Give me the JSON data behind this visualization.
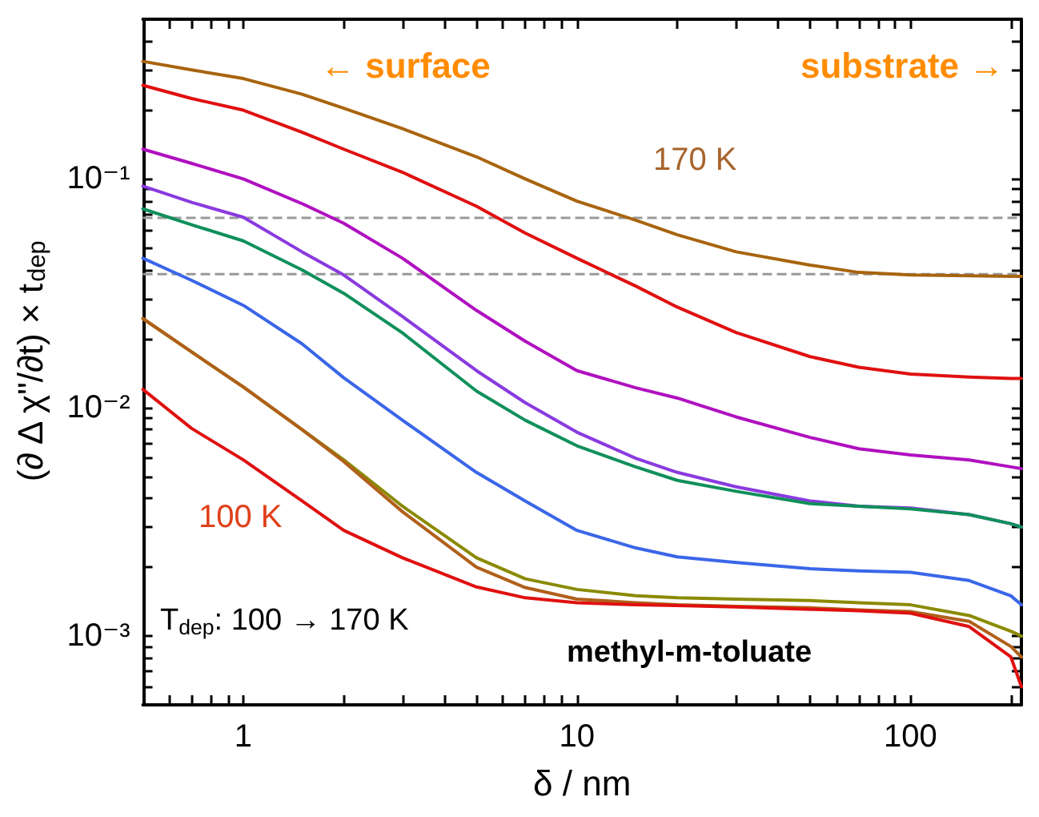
{
  "chart_data": {
    "type": "line",
    "xlabel": "δ / nm",
    "ylabel": "(∂ Δ χ\"/∂t) × t$_{dep}$",
    "log": "xy",
    "grid": false,
    "marker": "none",
    "line_style": "solid",
    "xlim": [
      0.5,
      215
    ],
    "ylim": [
      0.0005,
      0.5
    ],
    "xticks": [
      {
        "value": 0.5,
        "label": null
      },
      {
        "value": 0.6,
        "label": null
      },
      {
        "value": 0.7,
        "label": null
      },
      {
        "value": 0.8,
        "label": null
      },
      {
        "value": 0.9,
        "label": null
      },
      1,
      {
        "value": 2,
        "label": null
      },
      {
        "value": 3,
        "label": null
      },
      {
        "value": 4,
        "label": null
      },
      {
        "value": 5,
        "label": null
      },
      {
        "value": 6,
        "label": null
      },
      {
        "value": 7,
        "label": null
      },
      {
        "value": 8,
        "label": null
      },
      {
        "value": 9,
        "label": null
      },
      10,
      {
        "value": 20,
        "label": null
      },
      {
        "value": 30,
        "label": null
      },
      {
        "value": 40,
        "label": null
      },
      {
        "value": 50,
        "label": null
      },
      {
        "value": 60,
        "label": null
      },
      {
        "value": 70,
        "label": null
      },
      {
        "value": 80,
        "label": null
      },
      {
        "value": 90,
        "label": null
      },
      100,
      {
        "value": 200,
        "label": null
      }
    ],
    "yticks": [
      {
        "value": 0.0006,
        "label": null
      },
      {
        "value": 0.0007,
        "label": null
      },
      {
        "value": 0.0008,
        "label": null
      },
      {
        "value": 0.0009,
        "label": null
      },
      {
        "value": 0.001,
        "label": "10⁻³"
      },
      {
        "value": 0.002,
        "label": null
      },
      {
        "value": 0.003,
        "label": null
      },
      {
        "value": 0.004,
        "label": null
      },
      {
        "value": 0.005,
        "label": null
      },
      {
        "value": 0.006,
        "label": null
      },
      {
        "value": 0.007,
        "label": null
      },
      {
        "value": 0.008,
        "label": null
      },
      {
        "value": 0.009,
        "label": null
      },
      {
        "value": 0.01,
        "label": "10⁻²"
      },
      {
        "value": 0.02,
        "label": null
      },
      {
        "value": 0.03,
        "label": null
      },
      {
        "value": 0.04,
        "label": null
      },
      {
        "value": 0.05,
        "label": null
      },
      {
        "value": 0.06,
        "label": null
      },
      {
        "value": 0.07,
        "label": null
      },
      {
        "value": 0.08,
        "label": null
      },
      {
        "value": 0.09,
        "label": null
      },
      {
        "value": 0.1,
        "label": "10⁻¹"
      },
      {
        "value": 0.2,
        "label": null
      },
      {
        "value": 0.3,
        "label": null
      },
      {
        "value": 0.4,
        "label": null
      }
    ],
    "x": [
      0.5,
      0.7,
      1,
      1.5,
      2,
      3,
      5,
      7,
      10,
      15,
      20,
      30,
      50,
      70,
      100,
      150,
      200,
      215
    ],
    "series": [
      {
        "color": "#a8640f",
        "values": [
          0.327,
          0.3,
          0.275,
          0.235,
          0.204,
          0.166,
          0.125,
          0.1,
          0.08,
          0.066,
          0.057,
          0.048,
          0.042,
          0.039,
          0.038,
          0.0377,
          0.0375,
          0.0375
        ]
      },
      {
        "color": "#e01010",
        "values": [
          0.257,
          0.225,
          0.2,
          0.16,
          0.135,
          0.107,
          0.076,
          0.058,
          0.045,
          0.034,
          0.0275,
          0.0213,
          0.0167,
          0.015,
          0.014,
          0.0136,
          0.0134,
          0.0134
        ]
      },
      {
        "color": "#b010c0",
        "values": [
          0.135,
          0.117,
          0.1,
          0.078,
          0.064,
          0.045,
          0.0266,
          0.0195,
          0.0145,
          0.0122,
          0.011,
          0.0091,
          0.0074,
          0.0066,
          0.0062,
          0.0059,
          0.0055,
          0.0054
        ]
      },
      {
        "color": "#8a3ae0",
        "values": [
          0.093,
          0.079,
          0.068,
          0.048,
          0.038,
          0.025,
          0.0145,
          0.0105,
          0.0078,
          0.006,
          0.0052,
          0.0045,
          0.0039,
          0.0037,
          0.00363,
          0.0034,
          0.0031,
          0.003
        ]
      },
      {
        "color": "#10905a",
        "values": [
          0.074,
          0.063,
          0.0536,
          0.04,
          0.0316,
          0.0212,
          0.0118,
          0.0088,
          0.0068,
          0.0055,
          0.0048,
          0.0043,
          0.0038,
          0.0037,
          0.0036,
          0.0034,
          0.0031,
          0.003
        ]
      },
      {
        "color": "#3a66e8",
        "values": [
          0.045,
          0.036,
          0.028,
          0.019,
          0.0135,
          0.0088,
          0.0052,
          0.0039,
          0.0029,
          0.00243,
          0.00222,
          0.0021,
          0.00197,
          0.00193,
          0.0019,
          0.00175,
          0.0015,
          0.00137
        ]
      },
      {
        "color": "#8a8a00",
        "values": [
          0.0245,
          0.0175,
          0.0123,
          0.008,
          0.0059,
          0.0037,
          0.0022,
          0.00178,
          0.0016,
          0.0015,
          0.00147,
          0.00145,
          0.00143,
          0.0014,
          0.00137,
          0.00123,
          0.00105,
          0.001
        ]
      },
      {
        "color": "#b0601a",
        "values": [
          0.0245,
          0.0175,
          0.0123,
          0.008,
          0.0058,
          0.0035,
          0.002,
          0.00163,
          0.00145,
          0.0014,
          0.00137,
          0.00135,
          0.00133,
          0.0013,
          0.00128,
          0.00116,
          0.0009,
          0.00081
        ]
      },
      {
        "color": "#e01010",
        "values": [
          0.012,
          0.0081,
          0.0059,
          0.0039,
          0.0029,
          0.0022,
          0.00164,
          0.00147,
          0.0014,
          0.00137,
          0.00136,
          0.00134,
          0.00131,
          0.00129,
          0.00126,
          0.0011,
          0.00081,
          0.0006
        ]
      }
    ],
    "ref_lines": [
      {
        "axis": "y",
        "value": 0.0676,
        "color": "#999999",
        "line_style": "dashed"
      },
      {
        "axis": "y",
        "value": 0.0383,
        "color": "#999999",
        "line_style": "dashed"
      }
    ],
    "annotations": [
      "← surface",
      "substrate →",
      "170 K",
      "100 K",
      "T$_{dep}$: 100 → 170 K",
      "methyl-m-toluate"
    ]
  }
}
